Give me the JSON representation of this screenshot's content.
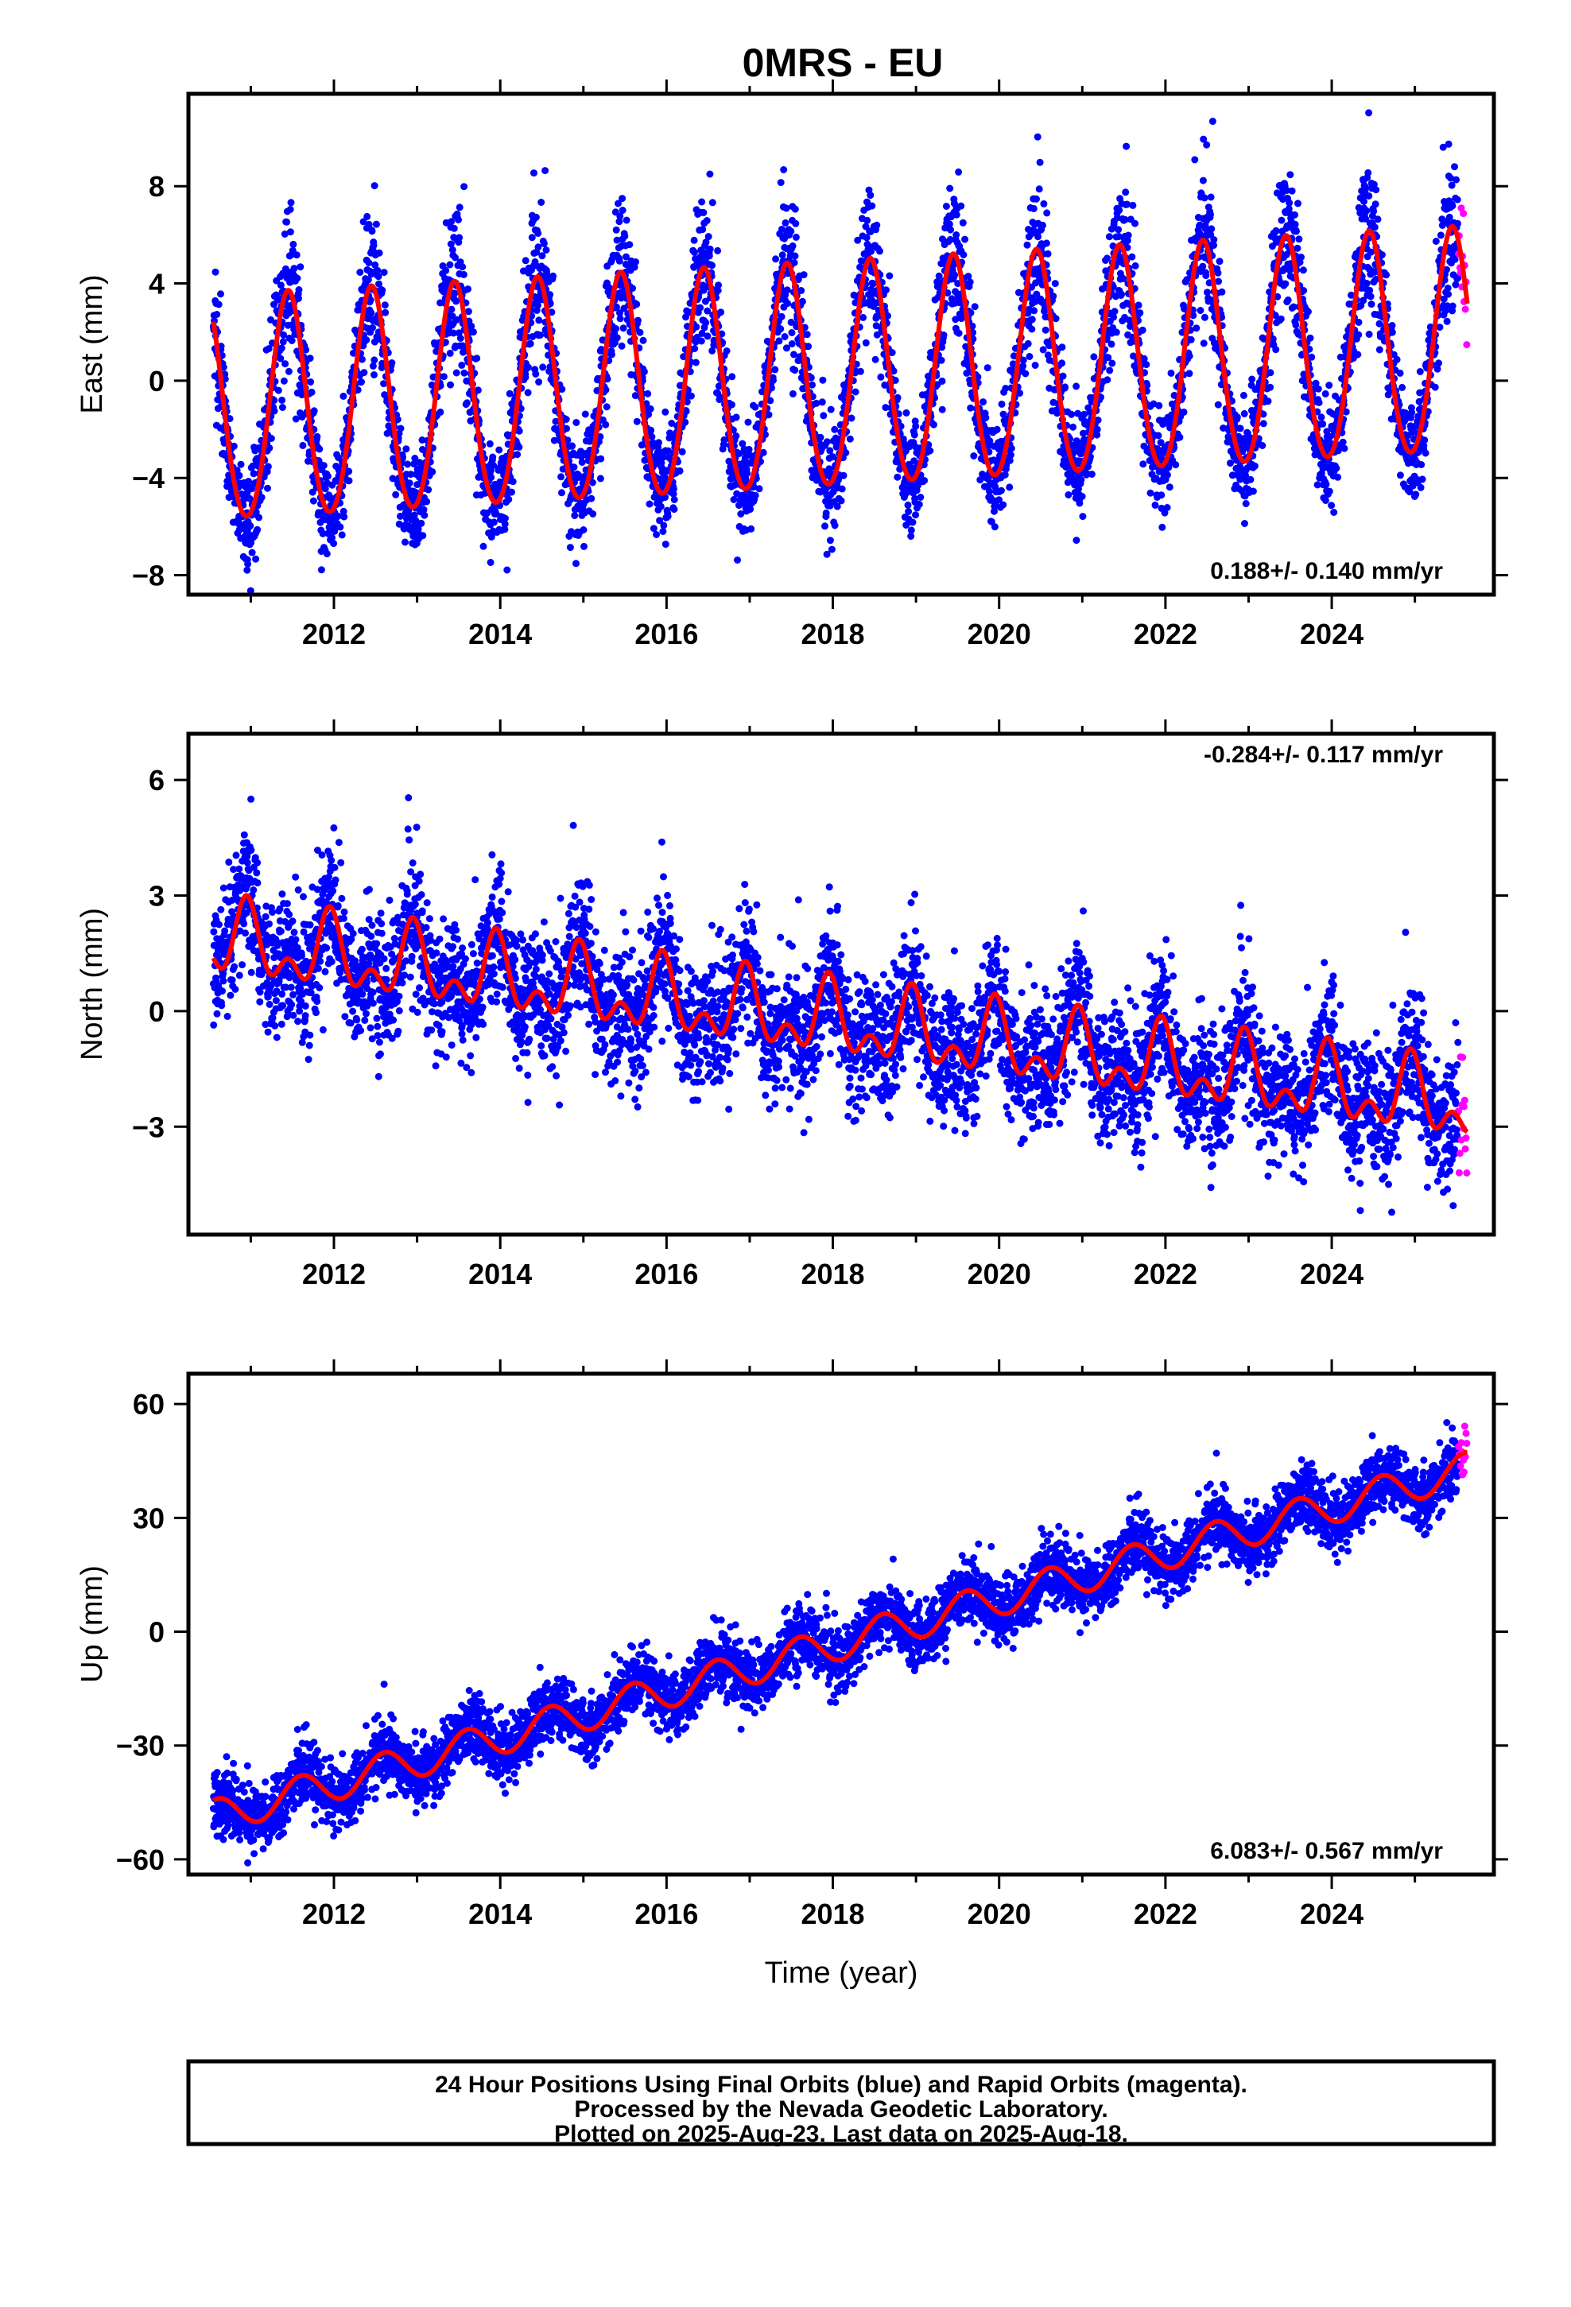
{
  "title": "0MRS - EU",
  "colors": {
    "final_orbits": "#0000ff",
    "rapid_orbits": "#ff00ff",
    "model": "#ff0000"
  },
  "footer": {
    "line1": "24 Hour Positions Using Final Orbits (blue) and Rapid Orbits (magenta).",
    "line2": "Processed by the Nevada Geodetic Laboratory.",
    "line3": "Plotted on 2025-Aug-23. Last data on 2025-Aug-18."
  },
  "chart_data": [
    {
      "type": "scatter",
      "component": "East",
      "ylabel": "East (mm)",
      "xlabel": "",
      "xlim": [
        2010.25,
        2025.95
      ],
      "ylim": [
        -8.8,
        11.8
      ],
      "x_ticks": [
        "2012",
        "2014",
        "2016",
        "2018",
        "2020",
        "2022",
        "2024"
      ],
      "y_ticks": [
        "8",
        "4",
        "0",
        "−4",
        "−8"
      ],
      "y_tick_values": [
        8,
        4,
        0,
        -4,
        -8
      ],
      "rate_annotation": "0.188+/- 0.140 mm/yr",
      "rate_annotation_position": "bottom-right",
      "data_start": 2010.55,
      "final_end": 2025.52,
      "last_data": 2025.63,
      "model": {
        "offset": 0.0,
        "reference_epoch": 2018.0,
        "rate_mm_per_yr": 0.188,
        "annual_amplitude": 4.6,
        "annual_peak": 2018.45,
        "semiannual_amplitude": 0.35,
        "scatter_sd": 1.3
      },
      "series": [
        {
          "name": "Final Orbits",
          "color": "#0000ff"
        },
        {
          "name": "Rapid Orbits",
          "color": "#ff00ff"
        },
        {
          "name": "Model",
          "color": "#ff0000"
        }
      ]
    },
    {
      "type": "scatter",
      "component": "North",
      "ylabel": "North (mm)",
      "xlabel": "",
      "xlim": [
        2010.25,
        2025.95
      ],
      "ylim": [
        -5.8,
        7.2
      ],
      "x_ticks": [
        "2012",
        "2014",
        "2016",
        "2018",
        "2020",
        "2022",
        "2024"
      ],
      "y_ticks": [
        "6",
        "3",
        "0",
        "−3"
      ],
      "y_tick_values": [
        6,
        3,
        0,
        -3
      ],
      "rate_annotation": "-0.284+/- 0.117 mm/yr",
      "rate_annotation_position": "top-right",
      "data_start": 2010.55,
      "final_end": 2025.52,
      "last_data": 2025.63,
      "model": {
        "offset": -0.3,
        "reference_epoch": 2018.0,
        "rate_mm_per_yr": -0.284,
        "annual_amplitude": 0.75,
        "annual_peak": 2018.95,
        "semiannual_amplitude": 0.55,
        "semiannual_peak": 2018.45,
        "scatter_sd": 0.85
      },
      "series": [
        {
          "name": "Final Orbits",
          "color": "#0000ff"
        },
        {
          "name": "Rapid Orbits",
          "color": "#ff00ff"
        },
        {
          "name": "Model",
          "color": "#ff0000"
        }
      ]
    },
    {
      "type": "scatter",
      "component": "Up",
      "ylabel": "Up (mm)",
      "xlabel": "Time (year)",
      "xlim": [
        2010.25,
        2025.95
      ],
      "ylim": [
        -64,
        68
      ],
      "x_ticks": [
        "2012",
        "2014",
        "2016",
        "2018",
        "2020",
        "2022",
        "2024"
      ],
      "y_ticks": [
        "60",
        "30",
        "0",
        "−30",
        "−60"
      ],
      "y_tick_values": [
        60,
        30,
        0,
        -30,
        -60
      ],
      "rate_annotation": "6.083+/- 0.567 mm/yr",
      "rate_annotation_position": "bottom-right",
      "data_start": 2010.55,
      "final_end": 2025.52,
      "last_data": 2025.63,
      "model": {
        "offset": -3.5,
        "reference_epoch": 2018.0,
        "rate_mm_per_yr": 6.083,
        "annual_amplitude": 4.5,
        "annual_peak": 2018.6,
        "semiannual_amplitude": 0.0,
        "scatter_sd": 4.2
      },
      "series": [
        {
          "name": "Final Orbits",
          "color": "#0000ff"
        },
        {
          "name": "Rapid Orbits",
          "color": "#ff00ff"
        },
        {
          "name": "Model",
          "color": "#ff0000"
        }
      ]
    }
  ]
}
